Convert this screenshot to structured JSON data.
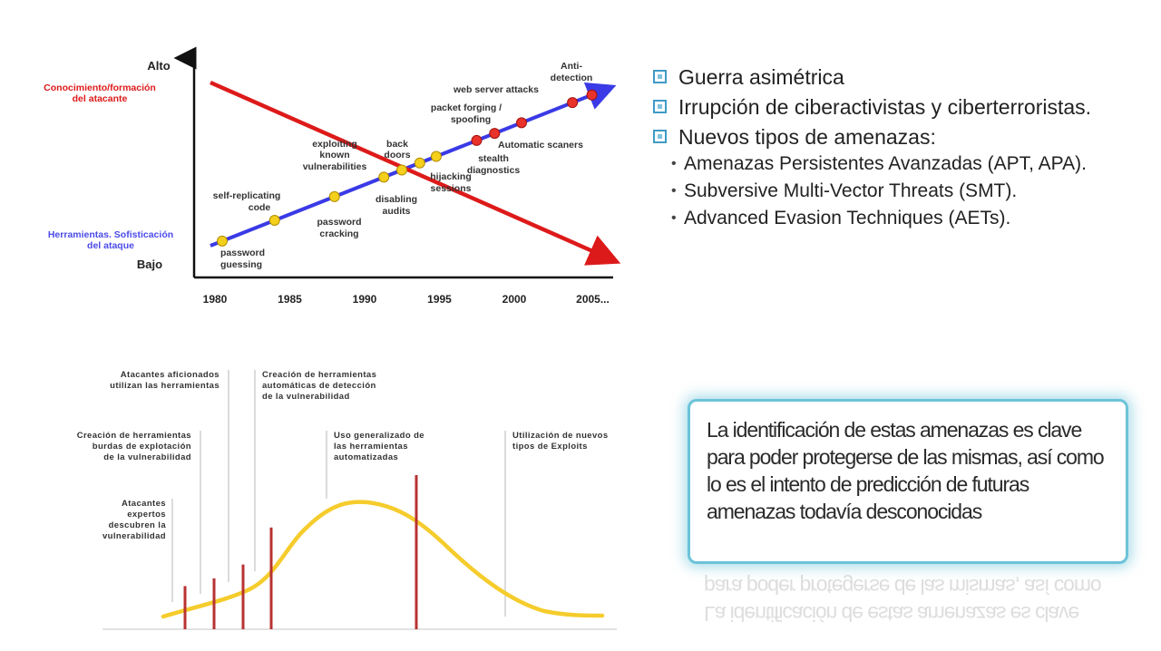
{
  "colors": {
    "red": "#dd1a1a",
    "blue": "#3a3ae6",
    "yellow_curve": "#f5cc2c",
    "bar_red": "#b83232",
    "callout_border": "#6cc3d9",
    "bullet_icon": "#3f9bc6"
  },
  "top_chart": {
    "y_high_label": "Alto",
    "y_low_label": "Bajo",
    "red_series_label": "Conocimiento/formación del atacante",
    "blue_series_label": "Herramientas. Sofisticación del ataque",
    "x_ticks": [
      "1980",
      "1985",
      "1990",
      "1995",
      "2000",
      "2005..."
    ],
    "milestones": [
      {
        "label": "password guessing",
        "year": 1980,
        "color": "yellow"
      },
      {
        "label": "self-replicating code",
        "year": 1983.5,
        "color": "yellow"
      },
      {
        "label": "password cracking",
        "year": 1987.5,
        "color": "yellow"
      },
      {
        "label": "exploiting known vulnerabilities",
        "year": 1990.8,
        "color": "yellow"
      },
      {
        "label": "disabling audits",
        "year": 1992,
        "color": "yellow"
      },
      {
        "label": "back doors",
        "year": 1993.2,
        "color": "yellow"
      },
      {
        "label": "hijacking sessions",
        "year": 1994.3,
        "color": "yellow"
      },
      {
        "label": "stealth diagnostics",
        "year": 1997,
        "color": "red"
      },
      {
        "label": "packet forging / spoofing",
        "year": 1998.2,
        "color": "red"
      },
      {
        "label": "Automatic scaners",
        "year": 2000,
        "color": "red"
      },
      {
        "label": "web server attacks",
        "year": 2003.4,
        "color": "red"
      },
      {
        "label": "Anti-detection",
        "year": 2004.7,
        "color": "red"
      }
    ]
  },
  "bottom_chart": {
    "labels": {
      "aficionados": "Atacantes aficionados utilizan las herramientas",
      "automaticas": "Creación de herramientas automáticas de detección de la vulnerabilidad",
      "burdas": "Creación de herramientas burdas de explotación de la vulnerabilidad",
      "generalizado": "Uso generalizado de las herramientas automatizadas",
      "nuevos": "Utilización de nuevos tipos de Exploits",
      "expertos": "Atacantes expertos descubren la vulnerabilidad"
    },
    "bars_relative_height": [
      0.28,
      0.33,
      0.42,
      0.66,
      1.0
    ]
  },
  "bullets": [
    {
      "text": "Guerra asimétrica",
      "sub": []
    },
    {
      "text": "Irrupción de ciberactivistas y ciberterroristas.",
      "sub": []
    },
    {
      "text": "Nuevos tipos de amenazas:",
      "sub": [
        "Amenazas Persistentes Avanzadas (APT, APA).",
        "Subversive Multi-Vector Threats (SMT).",
        "Advanced Evasion Techniques (AETs)."
      ]
    }
  ],
  "callout": {
    "text": "La identificación de estas amenazas es clave para poder protegerse de las mismas, así como lo es el intento de predicción de futuras amenazas todavía desconocidas"
  }
}
